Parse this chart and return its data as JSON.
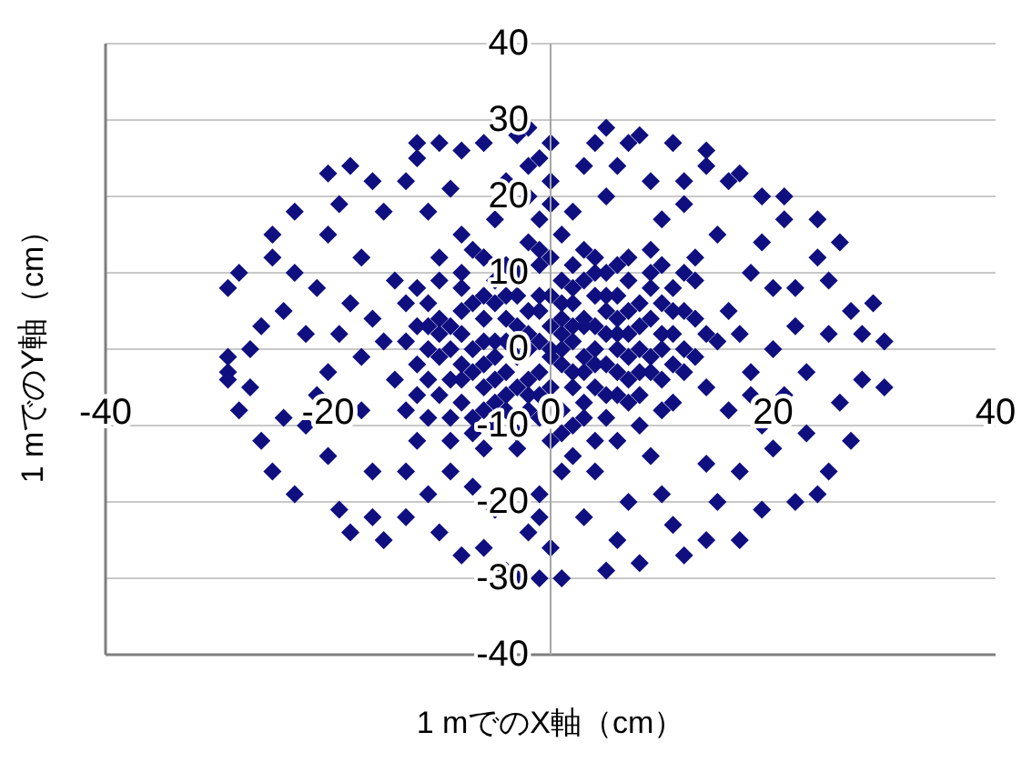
{
  "chart_data": {
    "type": "scatter",
    "xlabel": "1 mでのX軸（cm）",
    "ylabel": "1 mでのY軸（cm）",
    "x": [
      -28,
      -29,
      -29,
      -29,
      -25,
      -23,
      -25,
      -20,
      -18,
      -16,
      -12,
      -10,
      -8,
      -6,
      -3,
      -2,
      -4,
      -13,
      -15,
      -20,
      -23,
      -11,
      -8,
      -6,
      5,
      4,
      7,
      8,
      11,
      14,
      16,
      19,
      21,
      24,
      25,
      27,
      28,
      30,
      5,
      10,
      13,
      18,
      16,
      22,
      20,
      12,
      2,
      21,
      17,
      24,
      26,
      29,
      14,
      28,
      30,
      27,
      25,
      22,
      17,
      14,
      12,
      8,
      5,
      1,
      -1,
      7,
      10,
      14,
      17,
      20,
      23,
      19,
      9,
      4,
      -28,
      -26,
      -25,
      -23,
      -19,
      -18,
      -15,
      -16,
      -13,
      -11,
      -8,
      -6,
      -4,
      -3,
      -22,
      -20,
      -16,
      -13,
      -9,
      -29,
      -27,
      -24,
      -22,
      -20,
      -18,
      -26,
      -21,
      -17,
      -14,
      -12,
      -9,
      -1,
      -2,
      0,
      1,
      6,
      9,
      12,
      15,
      19,
      22,
      25,
      23,
      26,
      21,
      18,
      24,
      19,
      15,
      11,
      6,
      3,
      -2,
      -1,
      -5,
      -7,
      -10,
      -12,
      -17,
      -24,
      -27,
      -19,
      -21,
      0,
      3,
      -5,
      0,
      2,
      -2,
      1,
      -1,
      3,
      -3,
      4,
      -4,
      5,
      -5,
      6,
      -6,
      2,
      -2,
      7,
      -7,
      8,
      -8,
      3,
      -3,
      9,
      -9,
      1,
      -1,
      10,
      -10,
      5,
      -5,
      11,
      -11,
      7,
      -7,
      12,
      -12,
      0,
      0,
      4,
      -4,
      8,
      -8,
      13,
      -13,
      6,
      -6,
      10,
      -10,
      14,
      -14,
      2,
      -2,
      9,
      -9,
      15,
      -15,
      3,
      -4,
      6,
      -6,
      1,
      4,
      -1,
      0,
      7,
      -8,
      11,
      -11,
      16,
      -3,
      2,
      1,
      -2,
      3,
      -3,
      5,
      -5,
      2,
      -1,
      6,
      -6,
      4,
      -4,
      8,
      -8,
      9,
      -9,
      5,
      -5,
      11,
      -10,
      7,
      -7,
      3,
      -3,
      12,
      -12,
      10,
      -11,
      6,
      -6,
      13,
      -1,
      1,
      4,
      -13,
      14,
      0,
      2,
      -2,
      9,
      1,
      -1,
      0,
      2,
      -2,
      3,
      -4,
      4,
      -3,
      5,
      -5,
      6,
      -6,
      7,
      -7,
      8,
      -8,
      9,
      -9,
      10,
      -10,
      11,
      -11,
      12,
      -12,
      13,
      -13,
      3,
      1,
      -1,
      4,
      -4,
      5,
      -5,
      6,
      -6,
      7,
      -7,
      8,
      -8,
      9,
      -9,
      10,
      -10,
      11,
      -11,
      12,
      -12,
      2,
      -2,
      3,
      -3,
      1,
      -1,
      5,
      -5,
      7,
      -7,
      8,
      -8,
      10,
      -10,
      6,
      -6,
      4,
      -4,
      2,
      0,
      -1,
      0,
      -2,
      1,
      -1,
      0,
      17,
      20,
      -17,
      -19,
      18,
      -16
    ],
    "values": [
      10,
      8,
      -1,
      -3,
      15,
      18,
      12,
      23,
      24,
      22,
      27,
      27,
      26,
      27,
      28,
      29,
      22,
      22,
      18,
      15,
      10,
      18,
      15,
      12,
      29,
      27,
      27,
      28,
      27,
      24,
      22,
      20,
      17,
      12,
      9,
      5,
      2,
      1,
      20,
      17,
      12,
      10,
      5,
      3,
      8,
      22,
      18,
      20,
      23,
      17,
      14,
      6,
      26,
      -4,
      -5,
      -12,
      -16,
      -20,
      -25,
      -25,
      -27,
      -28,
      -29,
      -30,
      -30,
      -20,
      -19,
      -15,
      -16,
      -13,
      -11,
      -10,
      -14,
      -16,
      -8,
      -12,
      -16,
      -19,
      -21,
      -24,
      -25,
      -22,
      -22,
      -19,
      -27,
      -26,
      -29,
      -30,
      -10,
      -14,
      -16,
      -16,
      -16,
      -4,
      -5,
      5,
      2,
      -3,
      6,
      3,
      -6,
      12,
      9,
      25,
      21,
      25,
      20,
      27,
      15,
      24,
      22,
      19,
      15,
      14,
      8,
      2,
      -3,
      -7,
      -6,
      -3,
      -19,
      -21,
      -20,
      -23,
      -25,
      -22,
      -24,
      -19,
      -21,
      -18,
      -24,
      -12,
      -8,
      -9,
      0,
      19,
      8,
      22,
      24,
      17,
      0,
      1,
      2,
      -2,
      -3,
      3,
      -1,
      -2,
      4,
      5,
      -4,
      0,
      1,
      6,
      -6,
      -4,
      -3,
      3,
      5,
      -7,
      7,
      -1,
      0,
      9,
      -9,
      6,
      -6,
      10,
      -10,
      -7,
      3,
      9,
      -9,
      0,
      -2,
      12,
      -12,
      12,
      11,
      -10,
      10,
      4,
      6,
      -12,
      -13,
      11,
      12,
      -5,
      -4,
      -14,
      14,
      13,
      -12,
      1,
      1,
      4,
      -6,
      -6,
      7,
      4,
      0,
      5,
      -5,
      2,
      -2,
      8,
      -9,
      -8,
      10,
      -10,
      2,
      0,
      -3,
      3,
      2,
      1,
      -5,
      7,
      4,
      -2,
      7,
      -8,
      -6,
      -7,
      4,
      3,
      -9,
      9,
      2,
      -1,
      -1,
      6,
      9,
      -11,
      -3,
      8,
      -4,
      -4,
      11,
      12,
      9,
      11,
      -8,
      -12,
      -8,
      2,
      3,
      8,
      -4,
      8,
      0,
      1,
      -1,
      3,
      5,
      -1,
      1,
      3,
      -5,
      -2,
      -7,
      7,
      4,
      5,
      0,
      0,
      2,
      -3,
      -4,
      2,
      4,
      -2,
      0,
      5,
      3,
      -1,
      1,
      -9,
      6,
      -6,
      -5,
      -3,
      7,
      6,
      -3,
      -5,
      -7,
      -11,
      6,
      8,
      10,
      -9,
      -8,
      9,
      5,
      6,
      10,
      -6,
      11,
      -8,
      13,
      -13,
      -11,
      13,
      -6,
      -1,
      12,
      13,
      -3,
      -4,
      0,
      2,
      2,
      -8,
      10,
      7,
      -3,
      7,
      17,
      19,
      24,
      -16,
      -22,
      -26,
      2,
      0,
      -1,
      2,
      -6,
      4
    ],
    "color": "#0f0f80",
    "marker": "diamond",
    "xlim": [
      -40,
      40
    ],
    "xticks": [
      -40,
      -20,
      0,
      20,
      40
    ],
    "ylim": [
      -40,
      40
    ],
    "yticks": [
      -40,
      -30,
      -20,
      -10,
      0,
      10,
      20,
      30,
      40
    ],
    "grid": "y"
  }
}
